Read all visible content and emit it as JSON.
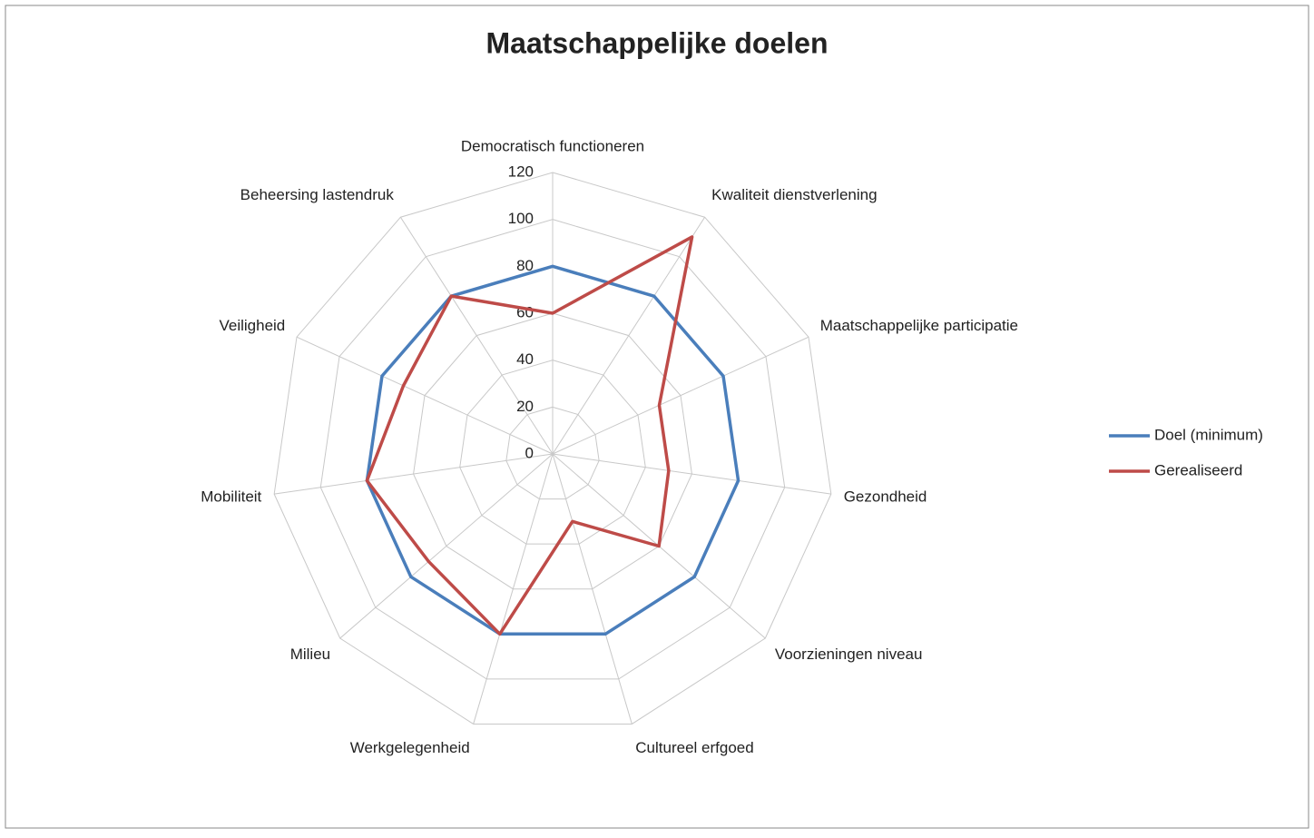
{
  "chart_data": {
    "type": "radar",
    "title": "Maatschappelijke doelen",
    "categories": [
      "Democratisch functioneren",
      "Kwaliteit dienstverlening",
      "Maatschappelijke participatie",
      "Gezondheid",
      "Voorzieningen niveau",
      "Cultureel erfgoed",
      "Werkgelegenheid",
      "Milieu",
      "Mobiliteit",
      "Veiligheid",
      "Beheersing lastendruk"
    ],
    "series": [
      {
        "name": "Doel (minimum)",
        "color": "#4a7ebb",
        "values": [
          80,
          80,
          80,
          80,
          80,
          80,
          80,
          80,
          80,
          80,
          80
        ]
      },
      {
        "name": "Gerealiseerd",
        "color": "#be4b48",
        "values": [
          60,
          110,
          50,
          50,
          60,
          30,
          80,
          70,
          80,
          70,
          80
        ]
      }
    ],
    "ylim": [
      0,
      120
    ],
    "yticks": [
      0,
      20,
      40,
      60,
      80,
      100,
      120
    ],
    "grid": true,
    "legend": "right"
  }
}
